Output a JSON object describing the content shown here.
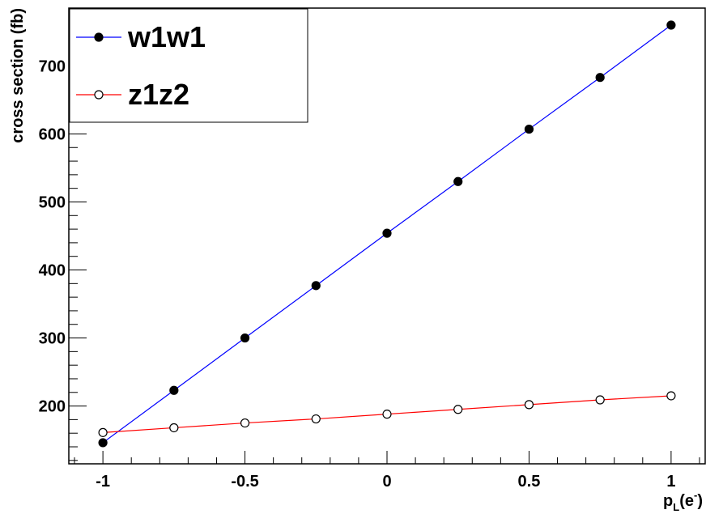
{
  "chart_data": {
    "type": "line",
    "xlabel": {
      "main": "p",
      "sub": "L",
      "paren_open": "(e",
      "sup": "-",
      "paren_close": ")"
    },
    "ylabel": "cross section (fb)",
    "xlim": [
      -1.12,
      1.12
    ],
    "ylim": [
      115,
      785
    ],
    "x_ticks": [
      {
        "value": -1,
        "label": "-1"
      },
      {
        "value": -0.5,
        "label": "-0.5"
      },
      {
        "value": 0,
        "label": "0"
      },
      {
        "value": 0.5,
        "label": "0.5"
      },
      {
        "value": 1,
        "label": "1"
      }
    ],
    "y_ticks": [
      {
        "value": 200,
        "label": "200"
      },
      {
        "value": 300,
        "label": "300"
      },
      {
        "value": 400,
        "label": "400"
      },
      {
        "value": 500,
        "label": "500"
      },
      {
        "value": 600,
        "label": "600"
      },
      {
        "value": 700,
        "label": "700"
      }
    ],
    "x": [
      -1,
      -0.75,
      -0.5,
      -0.25,
      0,
      0.25,
      0.5,
      0.75,
      1
    ],
    "series": [
      {
        "name": "w1w1",
        "color": "#0000ff",
        "marker": "filled-circle",
        "values": [
          146,
          223,
          300,
          377,
          454,
          530,
          607,
          683,
          760
        ]
      },
      {
        "name": "z1z2",
        "color": "#ff0000",
        "marker": "open-circle",
        "values": [
          161,
          168,
          175,
          181,
          188,
          195,
          202,
          209,
          215
        ]
      }
    ],
    "grid": false,
    "legend": "top-left"
  }
}
